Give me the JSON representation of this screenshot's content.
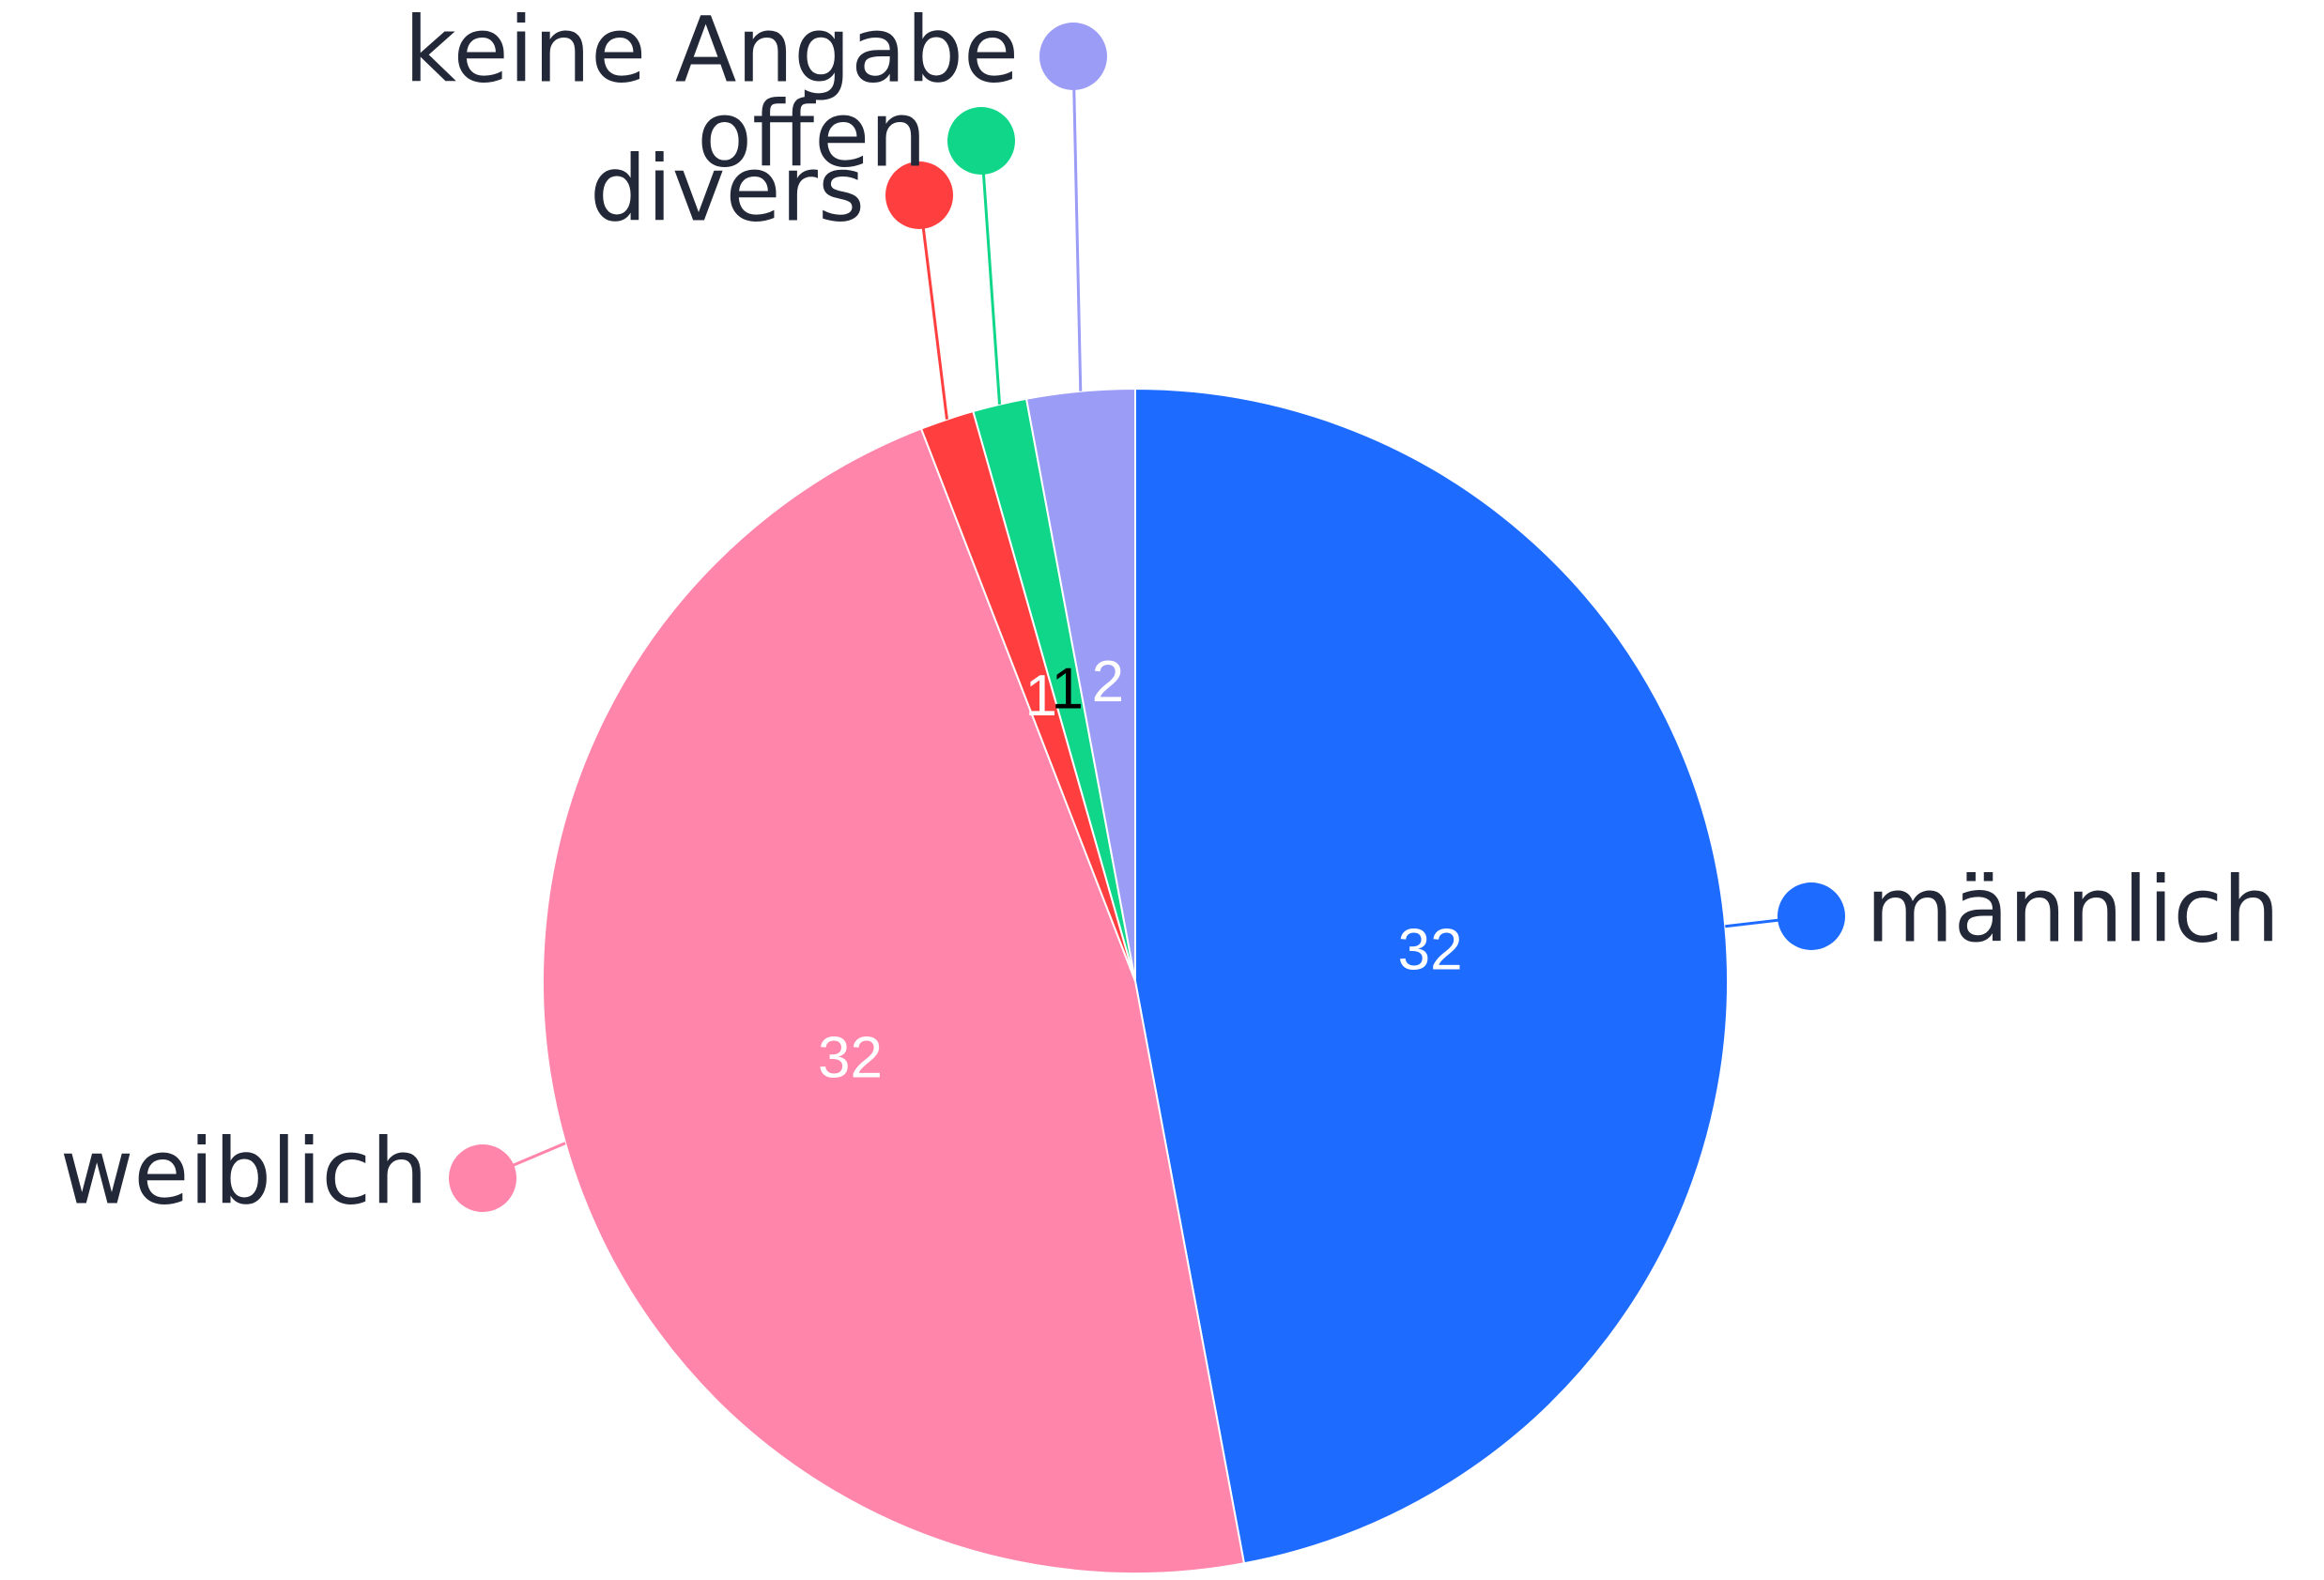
{
  "chart_data": {
    "type": "pie",
    "categories": [
      "männlich",
      "weiblich",
      "divers",
      "offen",
      "keine Angabe"
    ],
    "values": [
      32,
      32,
      1,
      1,
      2
    ],
    "colors": [
      "#1d6bff",
      "#ff85ab",
      "#ff3f3f",
      "#10d68a",
      "#9a9cf6"
    ],
    "label_colors": [
      "#ffffff",
      "#ffffff",
      "#ffffff",
      "#000000",
      "#ffffff"
    ]
  }
}
